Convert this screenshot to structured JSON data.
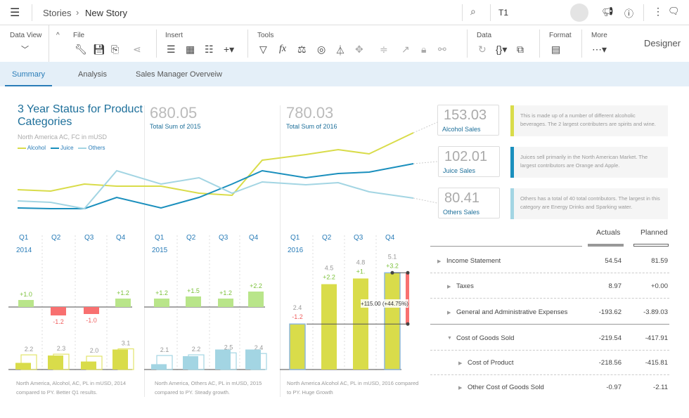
{
  "header": {
    "breadcrumb_root": "Stories",
    "breadcrumb_sep": "›",
    "breadcrumb_current": "New Story",
    "search_value": "T1"
  },
  "toolbar": {
    "groups": {
      "data_view": "Data View",
      "file": "File",
      "insert": "Insert",
      "tools": "Tools",
      "data": "Data",
      "format": "Format",
      "more": "More"
    },
    "designer": "Designer"
  },
  "tabs": [
    {
      "label": "Summary",
      "active": true
    },
    {
      "label": "Analysis"
    },
    {
      "label": "Sales Manager Overveiw"
    }
  ],
  "overview": {
    "title": "3 Year Status for Product Categories",
    "subtitle": "North America AC, FC in mUSD",
    "legend": [
      "Alcohol",
      "Juice",
      "Others"
    ],
    "kpis": [
      {
        "value": "680.05",
        "label": "Total Sum of 2015"
      },
      {
        "value": "780.03",
        "label": "Total Sum of 2016"
      }
    ]
  },
  "chart_data": [
    {
      "type": "line",
      "series": [
        {
          "name": "Alcohol",
          "color": "#d9dc4a",
          "values": [
            30,
            28,
            38,
            35,
            35,
            25,
            22,
            72,
            80,
            87,
            81,
            111
          ]
        },
        {
          "name": "Juice",
          "color": "#1a8fbd",
          "values": [
            4,
            3,
            3,
            19,
            4,
            19,
            38,
            57,
            47,
            53,
            55,
            67
          ]
        },
        {
          "name": "Others",
          "color": "#a3d5e3",
          "values": [
            14,
            12,
            3,
            57,
            38,
            47,
            25,
            41,
            37,
            40,
            27,
            18
          ]
        }
      ]
    },
    {
      "type": "bar",
      "year": "2014",
      "categories": [
        "Q1",
        "Q2",
        "Q3",
        "Q4"
      ],
      "variance": [
        1.0,
        -1.2,
        -1.0,
        1.2
      ],
      "variance_labels": [
        "+1.0",
        "-1.2",
        "-1.0",
        "+1.2"
      ],
      "actual": [
        1.0,
        2.1,
        1.2,
        3.0
      ],
      "previous": [
        2.2,
        2.3,
        2.0,
        3.1
      ],
      "previous_labels": [
        "2.2",
        "2.3",
        "2.0",
        "3.1"
      ],
      "fill": "#d9dc4a",
      "outline": "#e2e46a",
      "caption": "North America, Alcohol, AC, PL in mUSD, 2014 compared to PY. Better Q1 results."
    },
    {
      "type": "bar",
      "year": "2015",
      "categories": [
        "Q1",
        "Q2",
        "Q3",
        "Q4"
      ],
      "variance": [
        1.2,
        1.5,
        1.2,
        2.2
      ],
      "variance_labels": [
        "+1.2",
        "+1.5",
        "+1.2",
        "+2.2"
      ],
      "actual": [
        0.8,
        2.0,
        3.0,
        3.0
      ],
      "previous": [
        2.1,
        2.2,
        2.5,
        2.4
      ],
      "previous_labels": [
        "2.1",
        "2.2",
        "2.5",
        "2.4"
      ],
      "fill": "#a3d5e3",
      "outline": "#a3d5e3",
      "caption": "North America, Others AC, PL in mUSD, 2015 compared to PY. Steady growth."
    },
    {
      "type": "bar",
      "year": "2016",
      "categories": [
        "Q1",
        "Q2",
        "Q3",
        "Q4"
      ],
      "actual": [
        2.4,
        4.5,
        4.8,
        5.1
      ],
      "actual_labels": [
        "2.4",
        "4.5",
        "4.8",
        "5.1"
      ],
      "variance_labels": [
        "-1.2",
        "+2.2",
        "+1.",
        "+3.2"
      ],
      "fill": "#d9dc4a",
      "tooltip": "+115.00 (+44.75%)",
      "caption": "North America Alcohol AC, PL in mUSD, 2016 compared to PY. Huge Growth"
    }
  ],
  "cards": [
    {
      "value": "153.03",
      "label": "Alcohol Sales",
      "color": "#d9dc4a",
      "note": "This is made up of a number of different alcoholic beverages. The 2 largest contributers are spirits and wine."
    },
    {
      "value": "102.01",
      "label": "Juice Sales",
      "color": "#1a8fbd",
      "note": "Juices sell primarily in the North American Market. The largest contributors are Orange and Apple."
    },
    {
      "value": "80.41",
      "label": "Others Sales",
      "color": "#a3d5e3",
      "note": "Others has a total of 40 total contributors. The largest  in this category are Energy Drinks and Sparking water."
    }
  ],
  "table": {
    "headers": {
      "actuals": "Actuals",
      "planned": "Planned"
    },
    "rows": [
      {
        "label": "Income Statement",
        "actual": "54.54",
        "planned": "81.59",
        "level": 0,
        "expanded": false
      },
      {
        "label": "Taxes",
        "actual": "8.97",
        "planned": "+0.00",
        "level": 1,
        "expanded": false
      },
      {
        "label": "General and Administrative Expenses",
        "actual": "-193.62",
        "planned": "-3.89.03",
        "level": 1,
        "expanded": false
      },
      {
        "label": "Cost of Goods Sold",
        "actual": "-219.54",
        "planned": "-417.91",
        "level": 1,
        "expanded": true
      },
      {
        "label": "Cost of Product",
        "actual": "-218.56",
        "planned": "-415.81",
        "level": 2,
        "expanded": false
      },
      {
        "label": "Other Cost of Goods Sold",
        "actual": "-0.97",
        "planned": "-2.11",
        "level": 2,
        "expanded": false
      }
    ]
  }
}
